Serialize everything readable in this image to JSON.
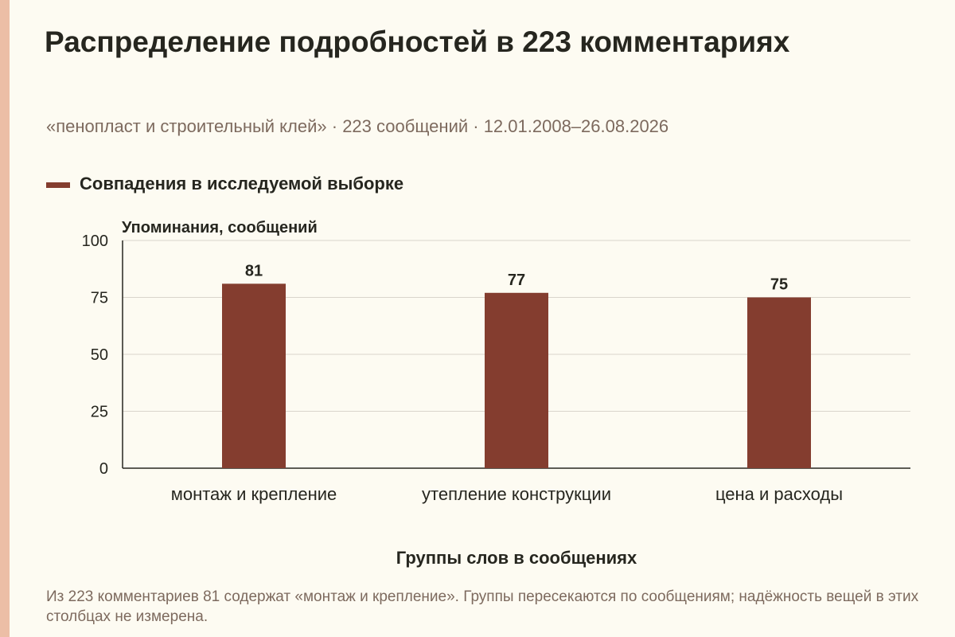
{
  "title": "Распределение подробностей в 223 комментариях",
  "subtitle": "«пенопласт и строительный клей» · 223 сообщений · 12.01.2008–26.08.2026",
  "note": "Из 223 комментариев 81 содержат «монтаж и крепление». Группы пересекаются по сообщениям; надёжность вещей в этих столбцах не измерена.",
  "colors": {
    "bar": "#843d2f",
    "background": "#fdfbf2",
    "accent_stripe": "#ecbea6"
  },
  "chart_data": {
    "type": "bar",
    "categories": [
      "монтаж и крепление",
      "утепление конструкции",
      "цена и расходы"
    ],
    "series": [
      {
        "name": "Совпадения в исследуемой выборке",
        "values": [
          81,
          77,
          75
        ]
      }
    ],
    "xlabel": "Группы слов в сообщениях",
    "ylabel": "Упоминания, сообщений",
    "ylim": [
      0,
      100
    ],
    "yticks": [
      0,
      25,
      50,
      75,
      100
    ],
    "grid": true,
    "legend": "top-left",
    "data_labels": true
  }
}
